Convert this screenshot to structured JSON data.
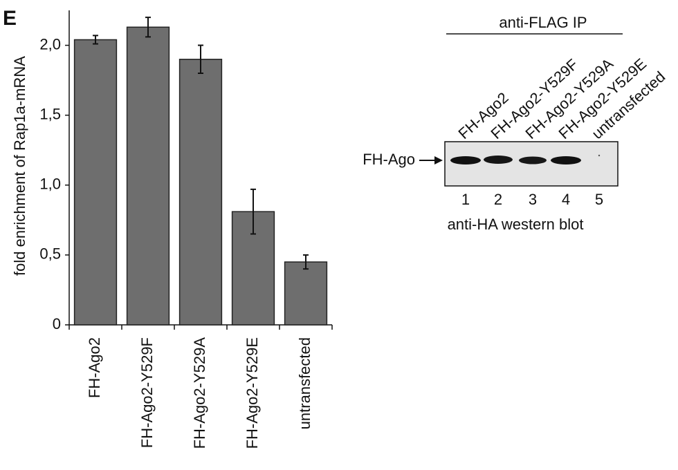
{
  "panel_label": "E",
  "chart_data": {
    "type": "bar",
    "y_label": "fold enrichment of Rap1a-mRNA",
    "categories": [
      "FH-Ago2",
      "FH-Ago2-Y529F",
      "FH-Ago2-Y529A",
      "FH-Ago2-Y529E",
      "untransfected"
    ],
    "values": [
      2.04,
      2.13,
      1.9,
      0.81,
      0.45
    ],
    "errors": [
      0.03,
      0.07,
      0.1,
      0.16,
      0.05
    ],
    "color": "#6e6e6e",
    "ylim": [
      0,
      2.25
    ],
    "yticks": [
      0,
      {
        "value": 0.5,
        "label": "0,5"
      },
      {
        "value": 1,
        "label": "1,0"
      },
      {
        "value": 1.5,
        "label": "1,5"
      },
      {
        "value": 2,
        "label": "2,0"
      }
    ],
    "grid": false
  },
  "blot": {
    "header": "anti-FLAG IP",
    "band_label": "FH-Ago",
    "footer": "anti-HA western blot",
    "lanes": [
      {
        "label": "FH-Ago2",
        "number": 1
      },
      {
        "label": "FH-Ago2-Y529F",
        "number": 2
      },
      {
        "label": "FH-Ago2-Y529A",
        "number": 3
      },
      {
        "label": "FH-Ago2-Y529E",
        "number": 4
      },
      {
        "label": "untransfected",
        "number": 5
      }
    ]
  }
}
